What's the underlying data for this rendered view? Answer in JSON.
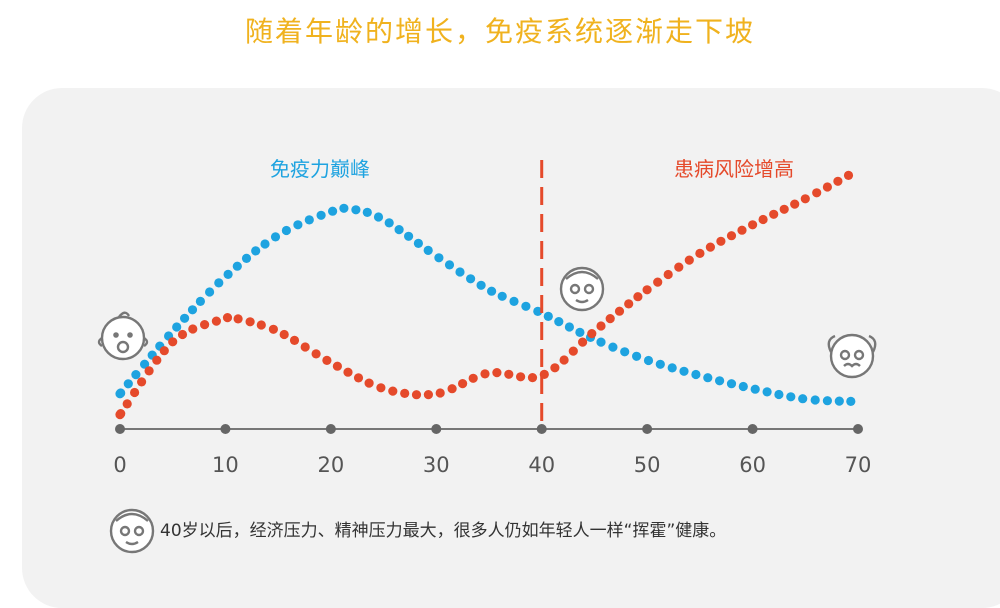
{
  "title": "随着年龄的增长，免疫系统逐渐走下坡",
  "chart_data": {
    "type": "scatter",
    "x_ticks": [
      0,
      10,
      20,
      30,
      40,
      50,
      60,
      70
    ],
    "xlim": [
      0,
      70
    ],
    "ylim": [
      0,
      100
    ],
    "grid": false,
    "series": [
      {
        "color": "#1ea3e0",
        "x": [
          0,
          5,
          10,
          15,
          20,
          22,
          25,
          30,
          35,
          40,
          45,
          50,
          55,
          60,
          65,
          70
        ],
        "y": [
          12,
          36,
          57,
          73,
          82,
          83,
          79,
          65,
          52,
          43,
          33,
          25,
          19,
          14,
          10,
          9
        ]
      },
      {
        "color": "#e54a2b",
        "x": [
          0,
          5,
          10,
          11,
          15,
          20,
          25,
          30,
          35,
          40,
          45,
          50,
          55,
          60,
          65,
          70
        ],
        "y": [
          4,
          32,
          41,
          41,
          36,
          24,
          14,
          12,
          20,
          19,
          36,
          52,
          66,
          77,
          87,
          98
        ]
      }
    ],
    "vline": {
      "x": 40,
      "color": "#e54a2b"
    },
    "annotations": [
      {
        "text": "免疫力巅峰",
        "color": "#1ea3e0"
      },
      {
        "text": "患病风险增高",
        "color": "#e54a2b"
      }
    ]
  },
  "footnote": "40岁以后，经济压力、精神压力最大，很多人仍如年轻人一样“挥霍”健康。",
  "icons": [
    "baby-face-icon",
    "middle-aged-face-icon",
    "elderly-face-icon"
  ]
}
